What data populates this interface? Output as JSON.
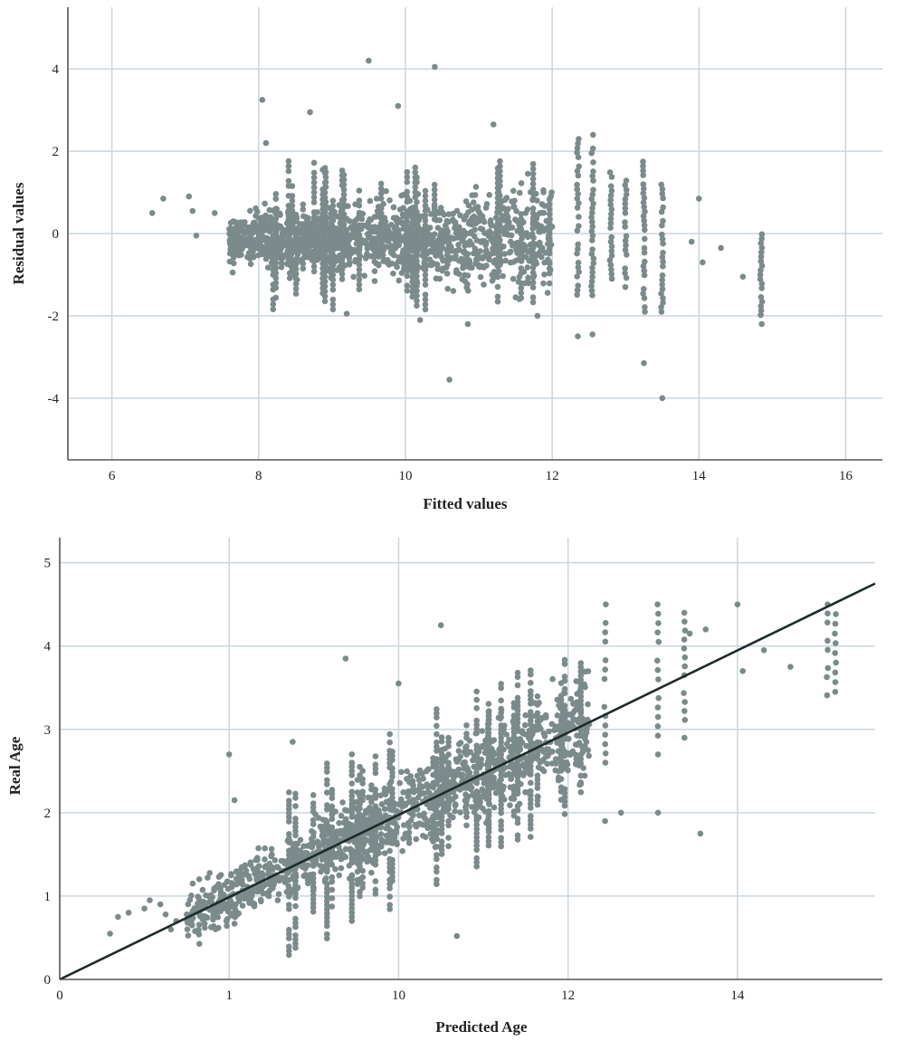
{
  "colors": {
    "points": "#7b8a8b",
    "grid": "#c9d6dd",
    "axis": "#555555",
    "fit_line": "#1c2a2a",
    "text": "#222222"
  },
  "chart_data": [
    {
      "type": "scatter",
      "xlabel": "Fitted values",
      "ylabel": "Residual values",
      "xlim": [
        5.4,
        16.5
      ],
      "ylim": [
        -5.5,
        5.5
      ],
      "xticks": [
        6,
        8,
        10,
        12,
        14,
        16
      ],
      "yticks": [
        -4,
        -2,
        0,
        2,
        4
      ],
      "grid": true,
      "outliers": [
        {
          "x": 9.5,
          "y": 4.2
        },
        {
          "x": 10.4,
          "y": 4.05
        },
        {
          "x": 8.05,
          "y": 3.25
        },
        {
          "x": 8.7,
          "y": 2.95
        },
        {
          "x": 9.9,
          "y": 3.1
        },
        {
          "x": 8.1,
          "y": 2.2
        },
        {
          "x": 11.2,
          "y": 2.65
        },
        {
          "x": 10.6,
          "y": -3.55
        },
        {
          "x": 13.25,
          "y": -3.15
        },
        {
          "x": 13.5,
          "y": -4.0
        },
        {
          "x": 12.35,
          "y": -2.5
        },
        {
          "x": 12.55,
          "y": -2.45
        },
        {
          "x": 6.55,
          "y": 0.5
        },
        {
          "x": 6.7,
          "y": 0.85
        },
        {
          "x": 7.05,
          "y": 0.9
        },
        {
          "x": 7.1,
          "y": 0.55
        },
        {
          "x": 7.15,
          "y": -0.05
        },
        {
          "x": 7.4,
          "y": 0.5
        },
        {
          "x": 14.0,
          "y": 0.85
        },
        {
          "x": 14.05,
          "y": -0.7
        },
        {
          "x": 13.9,
          "y": -0.2
        },
        {
          "x": 14.3,
          "y": -0.35
        },
        {
          "x": 14.6,
          "y": -1.05
        },
        {
          "x": 10.85,
          "y": -2.2
        },
        {
          "x": 10.2,
          "y": -2.1
        },
        {
          "x": 11.8,
          "y": -2.0
        },
        {
          "x": 9.2,
          "y": -1.95
        }
      ],
      "columns": [
        {
          "x": 12.35,
          "min": -1.6,
          "max": 2.3
        },
        {
          "x": 12.55,
          "min": -1.5,
          "max": 2.4
        },
        {
          "x": 12.8,
          "min": -1.1,
          "max": 1.6
        },
        {
          "x": 13.0,
          "min": -1.3,
          "max": 1.4
        },
        {
          "x": 13.25,
          "min": -1.9,
          "max": 1.75
        },
        {
          "x": 13.5,
          "min": -1.9,
          "max": 1.3
        },
        {
          "x": 14.85,
          "min": -2.2,
          "max": 0.2
        }
      ]
    },
    {
      "type": "scatter",
      "xlabel": "Predicted Age",
      "ylabel": "Real Age",
      "xlim": [
        0,
        15.4
      ],
      "ylim": [
        0,
        5.3
      ],
      "x_tick_positions": [
        0,
        3.2,
        6.4,
        9.6,
        12.8
      ],
      "x_tick_labels": [
        "0",
        "1",
        "10",
        "12",
        "14"
      ],
      "yticks": [
        0,
        1,
        2,
        3,
        4,
        5
      ],
      "grid": true,
      "fit_line": {
        "x": [
          0,
          15.4
        ],
        "y": [
          0,
          4.75
        ]
      },
      "outliers": [
        {
          "x": 7.2,
          "y": 4.25
        },
        {
          "x": 5.4,
          "y": 3.85
        },
        {
          "x": 6.4,
          "y": 3.55
        },
        {
          "x": 3.2,
          "y": 2.7
        },
        {
          "x": 3.3,
          "y": 2.15
        },
        {
          "x": 4.4,
          "y": 2.85
        },
        {
          "x": 1.9,
          "y": 0.9
        },
        {
          "x": 1.7,
          "y": 0.95
        },
        {
          "x": 1.3,
          "y": 0.8
        },
        {
          "x": 0.95,
          "y": 0.55
        },
        {
          "x": 2.4,
          "y": 0.78
        },
        {
          "x": 7.5,
          "y": 0.52
        },
        {
          "x": 11.3,
          "y": 2.0
        },
        {
          "x": 12.1,
          "y": 1.75
        },
        {
          "x": 10.3,
          "y": 1.9
        },
        {
          "x": 10.6,
          "y": 2.0
        },
        {
          "x": 12.8,
          "y": 4.5
        },
        {
          "x": 13.3,
          "y": 3.95
        },
        {
          "x": 12.9,
          "y": 3.7
        },
        {
          "x": 13.8,
          "y": 3.75
        },
        {
          "x": 11.9,
          "y": 4.15
        },
        {
          "x": 12.2,
          "y": 4.2
        }
      ],
      "columns": [
        {
          "x": 10.3,
          "min": 2.6,
          "max": 4.5
        },
        {
          "x": 11.3,
          "min": 2.7,
          "max": 4.5
        },
        {
          "x": 11.8,
          "min": 2.9,
          "max": 4.4
        },
        {
          "x": 14.5,
          "min": 3.3,
          "max": 4.5
        },
        {
          "x": 14.65,
          "min": 3.45,
          "max": 4.5
        }
      ]
    }
  ]
}
